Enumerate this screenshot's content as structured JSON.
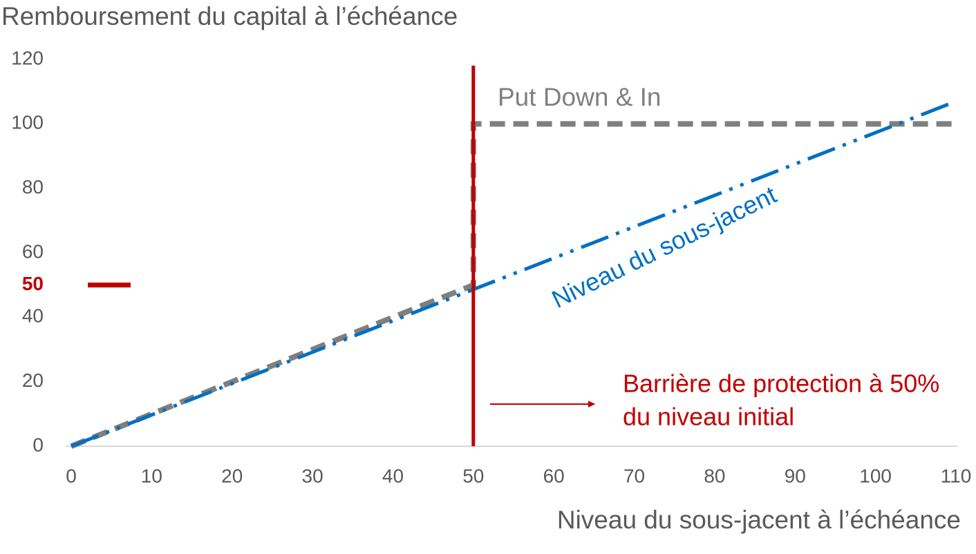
{
  "chart_data": {
    "type": "line",
    "title": "Remboursement du capital à l’échéance",
    "x_label": "Niveau du sous-jacent à l’échéance",
    "xlim": [
      0,
      110
    ],
    "xticks": [
      0,
      10,
      20,
      30,
      40,
      50,
      60,
      70,
      80,
      90,
      100,
      110
    ],
    "ylim": [
      0,
      120
    ],
    "yticks": [
      0,
      20,
      40,
      60,
      80,
      100,
      120
    ],
    "series": [
      {
        "name": "Put Down & In",
        "color": "#7f7f7f",
        "x": [
          0,
          50,
          50,
          110
        ],
        "values": [
          0,
          50,
          100,
          100
        ]
      },
      {
        "name": "Niveau du sous-jacent",
        "color": "#0070c0",
        "x": [
          0,
          110
        ],
        "values": [
          0,
          107
        ]
      }
    ],
    "barrier": {
      "value": 50,
      "color": "#c00000",
      "text": [
        "Barrière de protection à 50%",
        "du niveau initial"
      ]
    }
  }
}
